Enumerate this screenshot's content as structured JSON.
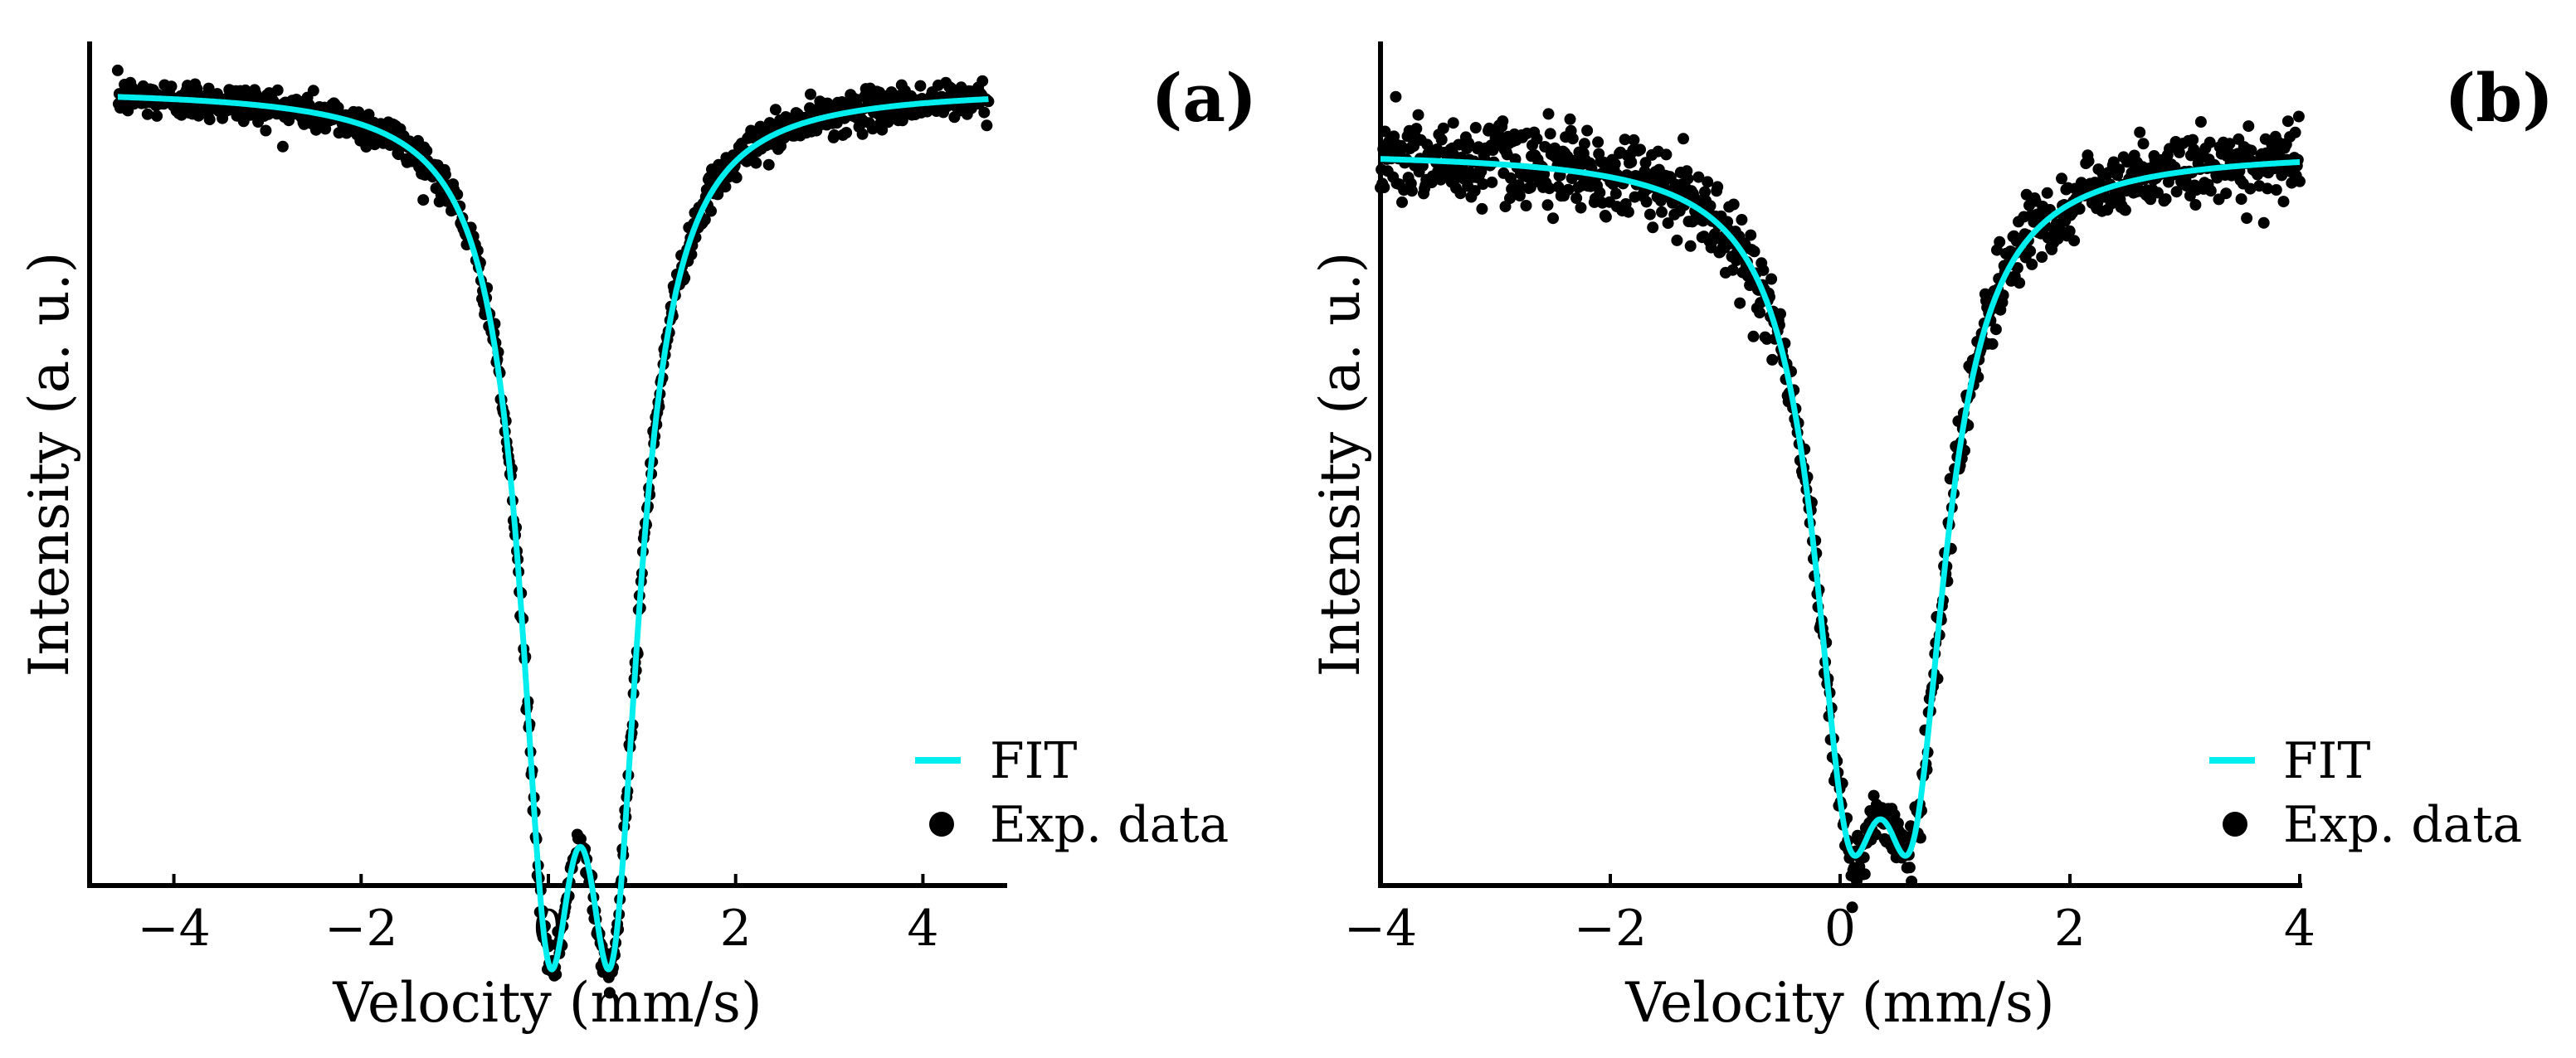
{
  "colors": {
    "fit": "#00eeee",
    "data": "#000000",
    "axis": "#000000"
  },
  "chart_data": [
    {
      "type": "scatter",
      "panel_label": "(a)",
      "xlabel": "Velocity (mm/s)",
      "ylabel": "Intensity (a. u.)",
      "xlim": [
        -4.9,
        4.9
      ],
      "ylim": [
        0,
        1.06
      ],
      "xticks": [
        -4,
        -2,
        0,
        2,
        4
      ],
      "xtick_labels": [
        "−4",
        "−2",
        "0",
        "2",
        "4"
      ],
      "grid": false,
      "legend": {
        "position": "bottom-right",
        "entries": [
          "FIT",
          "Exp. data"
        ]
      },
      "data_xrange": [
        -4.6,
        4.7
      ],
      "baseline": 1.0,
      "noise": 0.012,
      "series": [
        {
          "name": "FIT",
          "style": "line",
          "baseline": 1.0,
          "lorentzian_peaks": [
            {
              "center": 0.0,
              "width": 0.36,
              "depth": 0.9
            },
            {
              "center": 0.68,
              "width": 0.36,
              "depth": 0.9
            }
          ]
        },
        {
          "name": "Exp. data",
          "style": "markers",
          "n_points": 1024
        }
      ]
    },
    {
      "type": "scatter",
      "panel_label": "(b)",
      "xlabel": "Velocity (mm/s)",
      "ylabel": "Intensity (a. u.)",
      "xlim": [
        -4.0,
        4.0
      ],
      "ylim": [
        0,
        1.15
      ],
      "xticks": [
        -4,
        -2,
        0,
        2,
        4
      ],
      "xtick_labels": [
        "−4",
        "−2",
        "0",
        "2",
        "4"
      ],
      "grid": false,
      "legend": {
        "position": "bottom-right",
        "entries": [
          "FIT",
          "Exp. data"
        ]
      },
      "data_xrange": [
        -4.0,
        4.0
      ],
      "baseline": 1.0,
      "noise": 0.026,
      "series": [
        {
          "name": "FIT",
          "style": "line",
          "baseline": 1.0,
          "lorentzian_peaks": [
            {
              "center": 0.07,
              "width": 0.36,
              "depth": 0.73
            },
            {
              "center": 0.63,
              "width": 0.36,
              "depth": 0.73
            }
          ]
        },
        {
          "name": "Exp. data",
          "style": "markers",
          "n_points": 1024
        }
      ]
    }
  ]
}
